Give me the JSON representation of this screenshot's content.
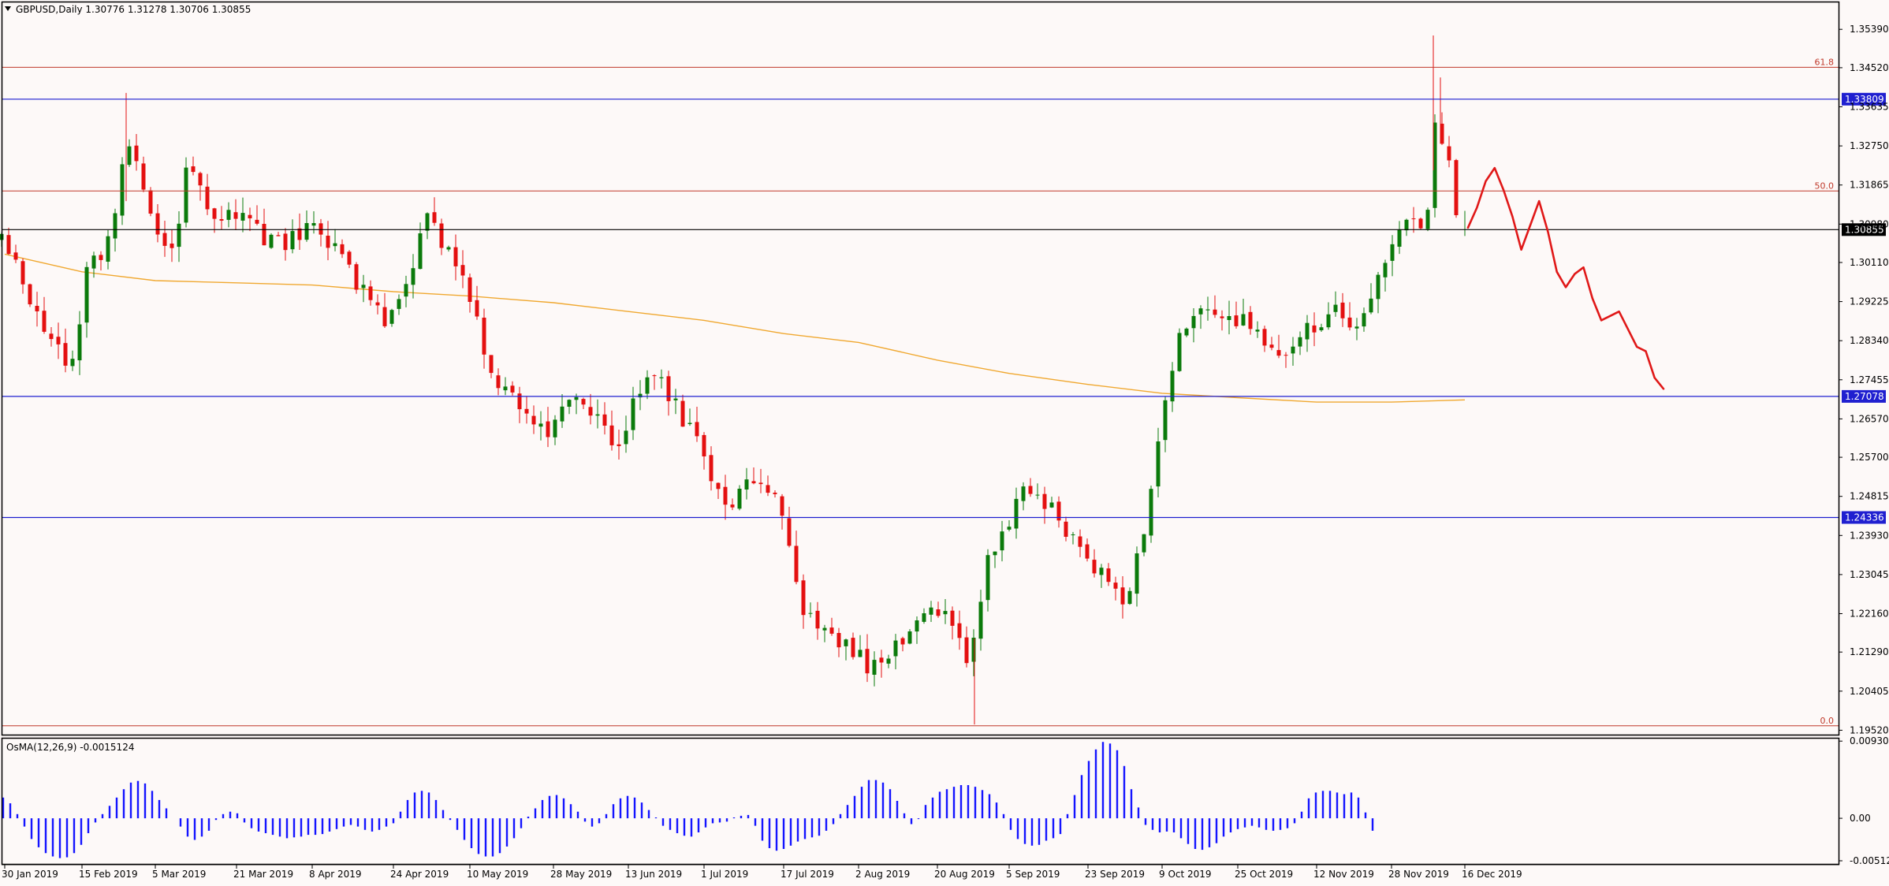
{
  "header": {
    "symbol_line": "GBPUSD,Daily  1.30776 1.31278 1.30706 1.30855",
    "indicator_line": "OsMA(12,26,9) -0.0015124"
  },
  "colors": {
    "bull": "#0b7a0b",
    "bear": "#e41010",
    "level_line": "#1f1fd0",
    "price_line": "#000000",
    "fib_line": "#c0392b",
    "ma_line": "#f0a830",
    "osma_bar": "#1414ff",
    "forecast": "#e01818",
    "background": "#fdf9f8"
  },
  "chart_data": [
    {
      "type": "candlestick",
      "title": "GBPUSD,Daily",
      "ohlc_text": "1.30776 1.31278 1.30706 1.30855",
      "x_tick_labels": [
        "30 Jan 2019",
        "15 Feb 2019",
        "5 Mar 2019",
        "21 Mar 2019",
        "8 Apr 2019",
        "24 Apr 2019",
        "10 May 2019",
        "28 May 2019",
        "13 Jun 2019",
        "1 Jul 2019",
        "17 Jul 2019",
        "2 Aug 2019",
        "20 Aug 2019",
        "5 Sep 2019",
        "23 Sep 2019",
        "9 Oct 2019",
        "25 Oct 2019",
        "12 Nov 2019",
        "28 Nov 2019",
        "16 Dec 2019"
      ],
      "y_ticks": [
        "1.35390",
        "1.34520",
        "1.33635",
        "1.32750",
        "1.31865",
        "1.30980",
        "1.30110",
        "1.29225",
        "1.28340",
        "1.27455",
        "1.26570",
        "1.25700",
        "1.24815",
        "1.23930",
        "1.23045",
        "1.22160",
        "1.21290",
        "1.20405",
        "1.19520"
      ],
      "ylim": [
        1.1942,
        1.36
      ],
      "horizontal_levels": [
        {
          "value": 1.33809,
          "label": "1.33809",
          "kind": "resistance"
        },
        {
          "value": 1.27078,
          "label": "1.27078",
          "kind": "support"
        },
        {
          "value": 1.24336,
          "label": "1.24336",
          "kind": "support"
        },
        {
          "value": 1.30855,
          "label": "1.30855",
          "kind": "current_price"
        }
      ],
      "fibonacci": [
        {
          "label": "61.8",
          "value": 1.3453
        },
        {
          "label": "50.0",
          "value": 1.3173
        },
        {
          "label": "0.0",
          "value": 1.1962
        }
      ],
      "anchors": [
        {
          "x_label": "30 Jan 2019",
          "price": 1.306
        },
        {
          "x_label": "15 Feb 2019",
          "price": 1.29
        },
        {
          "x_label": "5 Mar 2019",
          "price": 1.318
        },
        {
          "x_label": "21 Mar 2019",
          "price": 1.31
        },
        {
          "x_label": "8 Apr 2019",
          "price": 1.306
        },
        {
          "x_label": "24 Apr 2019",
          "price": 1.29
        },
        {
          "x_label": "10 May 2019",
          "price": 1.278
        },
        {
          "x_label": "28 May 2019",
          "price": 1.263
        },
        {
          "x_label": "13 Jun 2019",
          "price": 1.269
        },
        {
          "x_label": "1 Jul 2019",
          "price": 1.262
        },
        {
          "x_label": "17 Jul 2019",
          "price": 1.243
        },
        {
          "x_label": "2 Aug 2019",
          "price": 1.212
        },
        {
          "x_label": "20 Aug 2019",
          "price": 1.222
        },
        {
          "x_label": "5 Sep 2019",
          "price": 1.233
        },
        {
          "x_label": "23 Sep 2019",
          "price": 1.241
        },
        {
          "x_label": "9 Oct 2019",
          "price": 1.25
        },
        {
          "x_label": "25 Oct 2019",
          "price": 1.287
        },
        {
          "x_label": "12 Nov 2019",
          "price": 1.287
        },
        {
          "x_label": "28 Nov 2019",
          "price": 1.293
        },
        {
          "x_label": "16 Dec 2019",
          "price": 1.309
        }
      ],
      "moving_average": [
        1.303,
        1.299,
        1.297,
        1.2965,
        1.296,
        1.2945,
        1.2935,
        1.292,
        1.29,
        1.288,
        1.285,
        1.283,
        1.279,
        1.276,
        1.2735,
        1.2715,
        1.2705,
        1.2695,
        1.2695,
        1.27
      ],
      "forecast_path": [
        1.309,
        1.3135,
        1.3195,
        1.3225,
        1.3175,
        1.3115,
        1.304,
        1.3095,
        1.315,
        1.308,
        1.299,
        1.2955,
        1.2985,
        1.3,
        1.293,
        1.288,
        1.289,
        1.29,
        1.286,
        1.282,
        1.281,
        1.275,
        1.2725
      ]
    },
    {
      "type": "histogram",
      "title": "OsMA(12,26,9)",
      "value_text": "-0.0015124",
      "y_ticks": [
        "0.0093002",
        "0.00",
        "-0.0051214"
      ],
      "ylim": [
        -0.0055,
        0.0096
      ],
      "values": [
        0.0025,
        0.0018,
        0.0005,
        -0.001,
        -0.0025,
        -0.0035,
        -0.0042,
        -0.0046,
        -0.0048,
        -0.0047,
        -0.0042,
        -0.0032,
        -0.0018,
        -0.0005,
        0.0005,
        0.0015,
        0.0025,
        0.0035,
        0.0043,
        0.0045,
        0.0042,
        0.0033,
        0.0022,
        0.0012,
        0.0,
        -0.001,
        -0.0022,
        -0.0026,
        -0.0022,
        -0.0015,
        -0.0002,
        0.0005,
        0.0008,
        0.0006,
        -0.0005,
        -0.0012,
        -0.0016,
        -0.0018,
        -0.002,
        -0.0022,
        -0.0024,
        -0.0023,
        -0.0022,
        -0.002,
        -0.002,
        -0.0019,
        -0.0016,
        -0.0013,
        -0.001,
        -0.0008,
        -0.001,
        -0.0014,
        -0.0016,
        -0.0014,
        -0.001,
        -0.0006,
        0.0008,
        0.0022,
        0.0031,
        0.0033,
        0.0031,
        0.0022,
        0.001,
        -0.0002,
        -0.0014,
        -0.0026,
        -0.0036,
        -0.0043,
        -0.0046,
        -0.0046,
        -0.0042,
        -0.0034,
        -0.0024,
        -0.0012,
        0.0002,
        0.0012,
        0.0022,
        0.0027,
        0.0028,
        0.0024,
        0.0017,
        0.0008,
        -0.0004,
        -0.001,
        -0.0006,
        0.0005,
        0.0017,
        0.0024,
        0.0027,
        0.0025,
        0.0019,
        0.001,
        0.0001,
        -0.0009,
        -0.0014,
        -0.0018,
        -0.0021,
        -0.0022,
        -0.0017,
        -0.0011,
        -0.0006,
        -0.0005,
        -0.0004,
        0.0001,
        0.0003,
        0.0004,
        -0.0009,
        -0.0027,
        -0.0036,
        -0.0039,
        -0.0037,
        -0.0033,
        -0.0028,
        -0.0025,
        -0.0023,
        -0.0021,
        -0.0015,
        -0.0007,
        0.0005,
        0.0016,
        0.0027,
        0.0038,
        0.0046,
        0.0046,
        0.0043,
        0.0035,
        0.0021,
        0.0006,
        -0.0007,
        -0.0001,
        0.0016,
        0.0025,
        0.0032,
        0.0035,
        0.0038,
        0.004,
        0.004,
        0.0038,
        0.0034,
        0.0029,
        0.0019,
        0.0005,
        -0.0014,
        -0.0025,
        -0.0031,
        -0.0033,
        -0.0032,
        -0.0027,
        -0.0024,
        -0.0019,
        0.0005,
        0.0028,
        0.0052,
        0.0069,
        0.0083,
        0.0092,
        0.009,
        0.0082,
        0.0063,
        0.0035,
        0.0013,
        -0.0008,
        -0.0014,
        -0.0017,
        -0.0016,
        -0.0017,
        -0.0024,
        -0.0031,
        -0.0037,
        -0.0038,
        -0.0035,
        -0.003,
        -0.0022,
        -0.0017,
        -0.0013,
        -0.0011,
        -0.0009,
        -0.0011,
        -0.0014,
        -0.0015,
        -0.0014,
        -0.0012,
        -0.0006,
        0.0008,
        0.0024,
        0.0031,
        0.0033,
        0.0033,
        0.0031,
        0.0029,
        0.0031,
        0.0025,
        0.0007,
        -0.0015
      ]
    }
  ]
}
